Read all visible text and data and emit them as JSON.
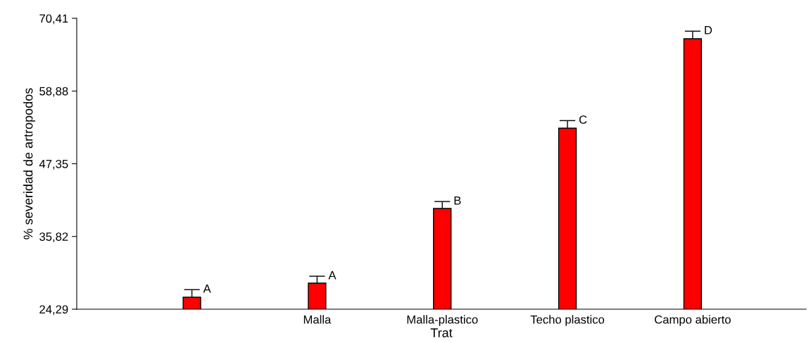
{
  "chart_data": {
    "type": "bar",
    "xlabel": "Trat",
    "ylabel": "% severidad de artropodos",
    "categories": [
      null,
      "Malla",
      "Malla-plastico",
      "Techo plastico",
      "Campo abierto"
    ],
    "values": [
      26.19,
      28.42,
      40.26,
      52.99,
      67.17
    ],
    "errors": [
      1.2,
      1.1,
      1.1,
      1.2,
      1.2
    ],
    "value_labels": [
      "A",
      "A",
      "B",
      "C",
      "D"
    ],
    "color": "#ff0000",
    "ylim": [
      24.29,
      70.41
    ],
    "yticks": [
      {
        "value": 24.29,
        "label": "24,29"
      },
      {
        "value": 35.82,
        "label": "35,82"
      },
      {
        "value": 47.35,
        "label": "47,35"
      },
      {
        "value": 58.88,
        "label": "58,88"
      },
      {
        "value": 70.41,
        "label": "70,41"
      }
    ],
    "grid": false,
    "legend": false
  }
}
